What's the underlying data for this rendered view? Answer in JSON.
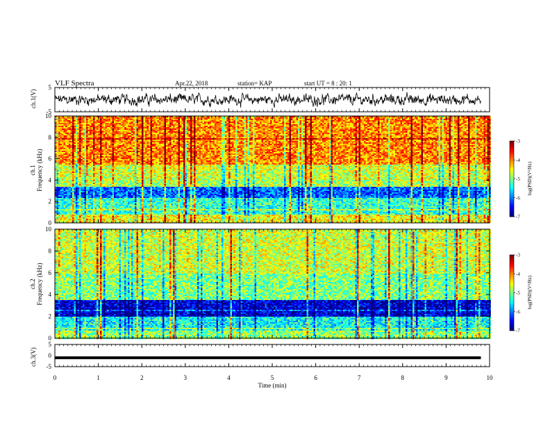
{
  "header": {
    "title": "VLF Spectra",
    "date": "Apr.22, 2018",
    "station": "station= KAP",
    "start": "start  UT =  8 : 20: 1"
  },
  "colors": {
    "spectrum_low": "#00007f",
    "spectrum_high": "#ff0000",
    "waveform": "#000000"
  },
  "chart_data": [
    {
      "id": "ch1-waveform",
      "type": "line",
      "ylabel": "ch.1(V)",
      "ylim": [
        -5,
        5
      ],
      "yticks": [
        "5",
        "-5"
      ],
      "x_range_min": [
        0,
        9.8
      ],
      "description_level": "noisy signal around 0 V"
    },
    {
      "id": "ch1-spectrogram",
      "type": "heatmap",
      "ylabel_line1": "ch.1",
      "ylabel_line2": "Frequency (kHz)",
      "ylim": [
        0,
        10
      ],
      "yticks": [
        "0",
        "2",
        "4",
        "6",
        "8",
        "10"
      ],
      "colorbar_label": "log(PSD)(V²/Hz)",
      "colorbar_range": [
        -7,
        -3
      ],
      "colorbar_ticks": [
        "-3",
        "-4",
        "-5",
        "-6",
        "-7"
      ]
    },
    {
      "id": "ch2-spectrogram",
      "type": "heatmap",
      "ylabel_line1": "ch.2",
      "ylabel_line2": "Frequency (kHz)",
      "ylim": [
        0,
        10
      ],
      "yticks": [
        "0",
        "2",
        "4",
        "6",
        "8",
        "10"
      ],
      "colorbar_label": "log(PSD)(V²/Hz)",
      "colorbar_range": [
        -7,
        -3
      ],
      "colorbar_ticks": [
        "-3",
        "-4",
        "-5",
        "-6",
        "-7"
      ]
    },
    {
      "id": "ch3-waveform",
      "type": "line",
      "ylabel": "ch.3(V)",
      "ylim": [
        -5,
        5
      ],
      "yticks": [
        "5",
        "0",
        "-5"
      ],
      "level": -1,
      "x_range_min": [
        0,
        9.8
      ]
    }
  ],
  "xaxis": {
    "label": "Time (min)",
    "ticks": [
      "0",
      "1",
      "2",
      "3",
      "4",
      "5",
      "6",
      "7",
      "8",
      "9",
      "10"
    ],
    "xlim": [
      0,
      10
    ]
  }
}
